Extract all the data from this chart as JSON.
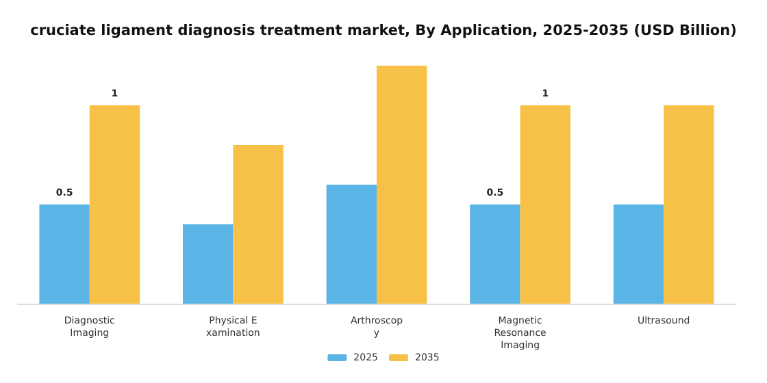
{
  "chart_data": {
    "type": "bar",
    "title": "cruciate ligament diagnosis treatment market, By Application, 2025-2035 (USD Billion)",
    "categories": [
      "Diagnostic\nImaging",
      "Physical E\nxamination",
      "Arthroscop\ny",
      "Magnetic\nResonance\nImaging",
      "Ultrasound"
    ],
    "series": [
      {
        "name": "2025",
        "color": "#5ab4e5",
        "values": [
          0.5,
          0.4,
          0.6,
          0.5,
          0.5
        ],
        "value_labels": [
          "0.5",
          null,
          null,
          "0.5",
          null
        ]
      },
      {
        "name": "2035",
        "color": "#f6c146",
        "values": [
          1,
          0.8,
          1.2,
          1,
          1
        ],
        "value_labels": [
          "1",
          null,
          null,
          "1",
          null
        ]
      }
    ],
    "tick_labels": "x",
    "legend": "bottom"
  }
}
